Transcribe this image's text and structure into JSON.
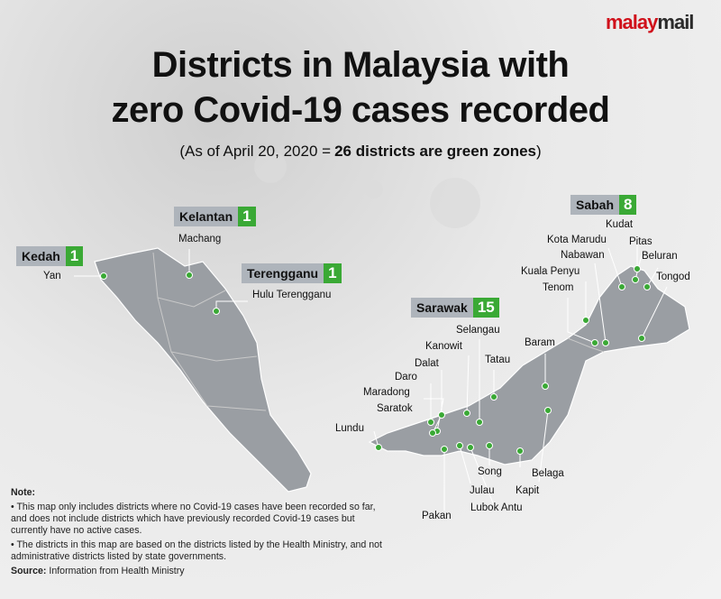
{
  "brand": {
    "first": "malay",
    "second": "mail"
  },
  "title": [
    "Districts in Malaysia with",
    "zero Covid-19 cases recorded"
  ],
  "subtitle": {
    "lead": "(As of April 20, 2020 =",
    "bold": "26 districts are green zones",
    "close": ")"
  },
  "states": [
    {
      "name": "Kedah",
      "count": 1,
      "districts": [
        "Yan"
      ]
    },
    {
      "name": "Kelantan",
      "count": 1,
      "districts": [
        "Machang"
      ]
    },
    {
      "name": "Terengganu",
      "count": 1,
      "districts": [
        "Hulu Terengganu"
      ]
    },
    {
      "name": "Sabah",
      "count": 8,
      "districts": [
        "Kudat",
        "Kota Marudu",
        "Pitas",
        "Nabawan",
        "Beluran",
        "Kuala Penyu",
        "Tongod",
        "Tenom"
      ]
    },
    {
      "name": "Sarawak",
      "count": 15,
      "districts": [
        "Selangau",
        "Baram",
        "Kanowit",
        "Tatau",
        "Dalat",
        "Daro",
        "Maradong",
        "Saratok",
        "Lundu",
        "Song",
        "Belaga",
        "Julau",
        "Kapit",
        "Lubok Antu",
        "Pakan"
      ]
    }
  ],
  "note": {
    "heading": "Note:",
    "items": [
      "• This map only includes districts where no Covid-19 cases have been recorded so far, and does not include districts which have previously recorded Covid-19 cases but currently have no active cases.",
      "• The districts in this map are based on the districts listed by the Health Ministry, and not administrative districts listed by state governments."
    ],
    "source_label": "Source:",
    "source": "Information from Health Ministry"
  }
}
